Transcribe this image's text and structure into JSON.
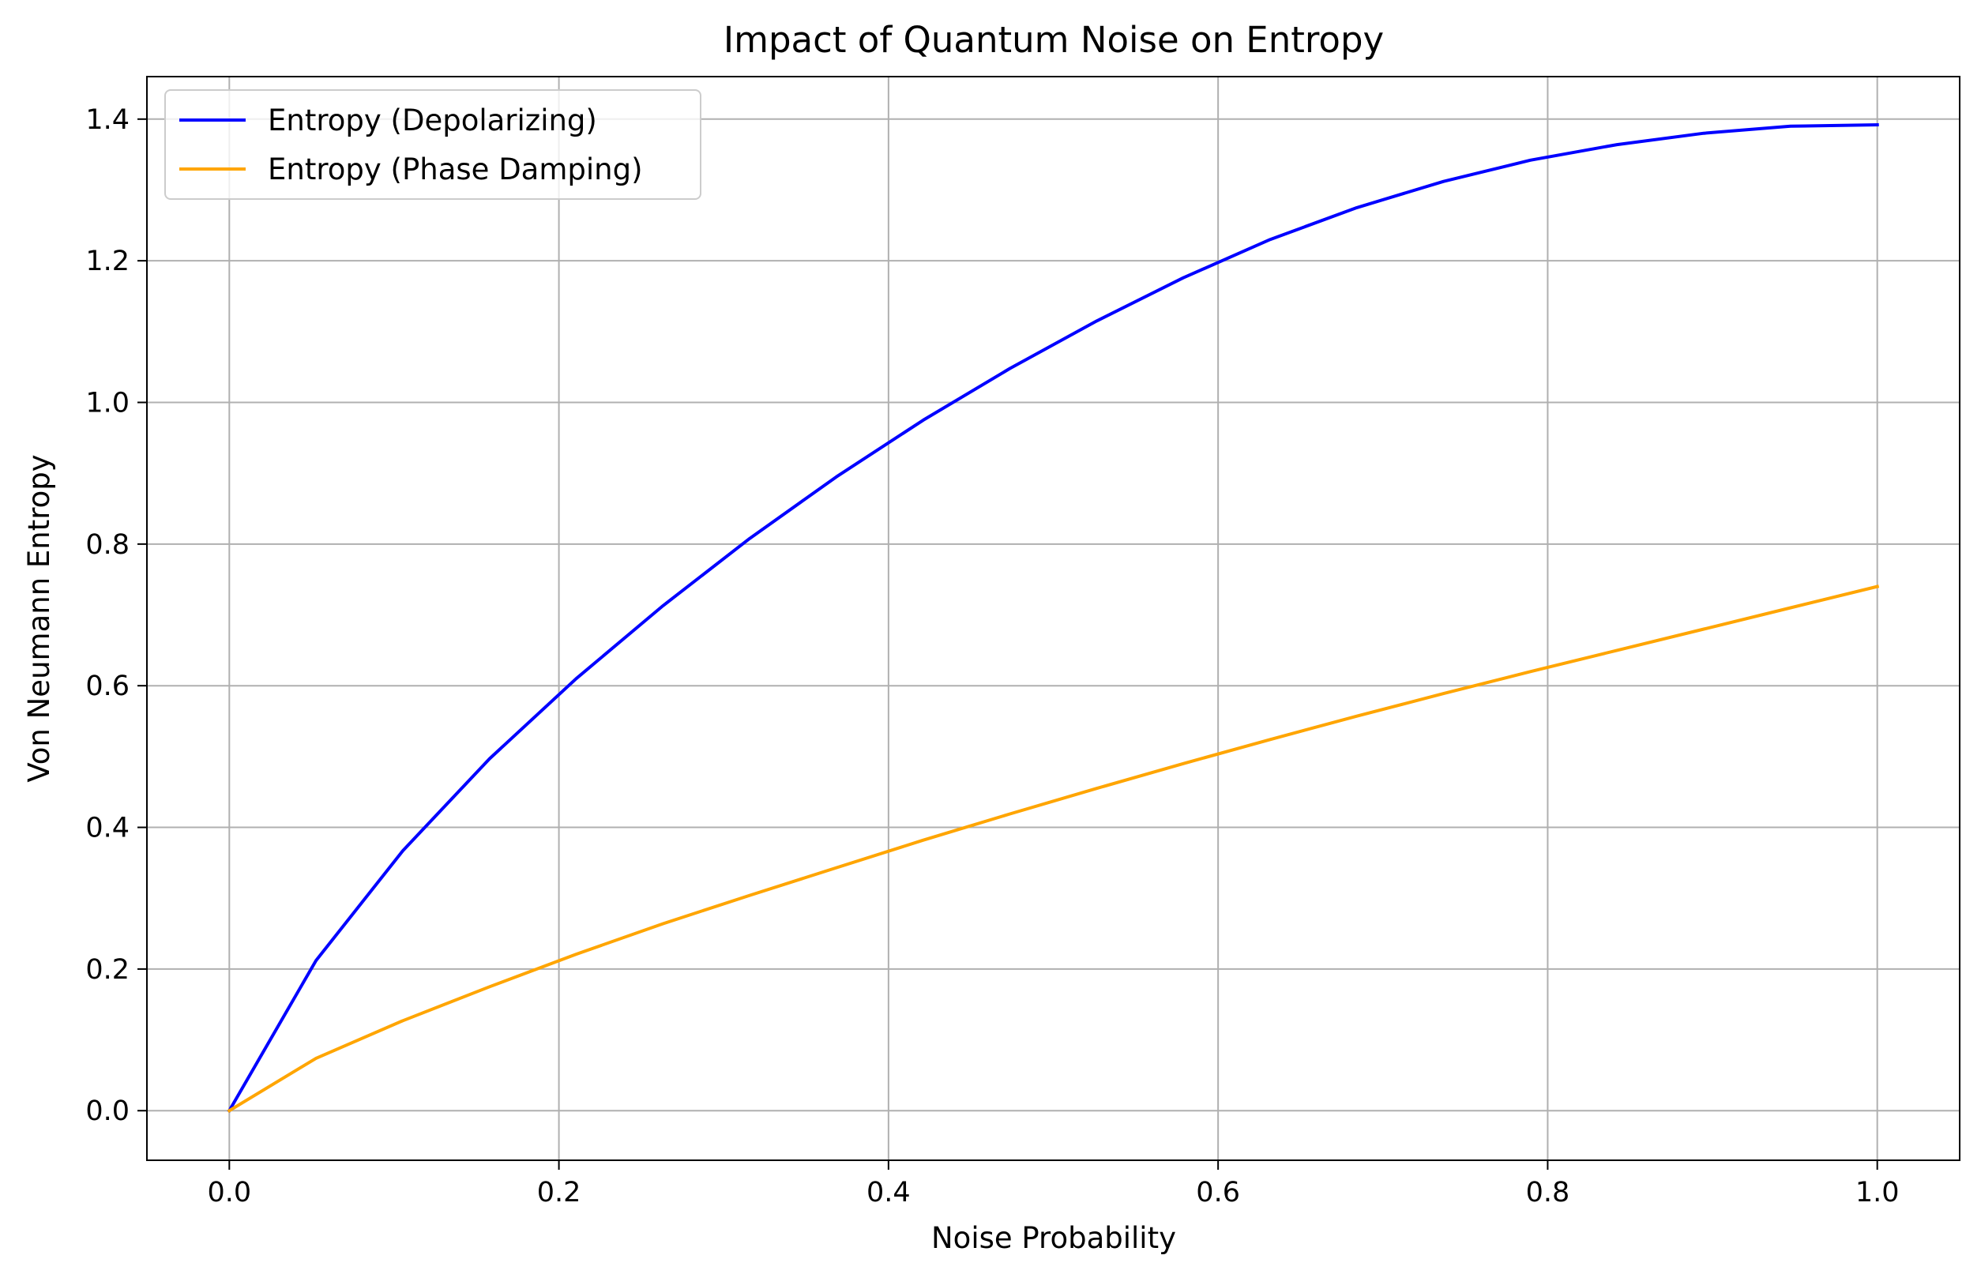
{
  "chart_data": {
    "type": "line",
    "title": "Impact of Quantum Noise on Entropy",
    "xlabel": "Noise Probability",
    "ylabel": "Von Neumann Entropy",
    "xlim": [
      -0.05,
      1.05
    ],
    "ylim": [
      -0.07,
      1.46
    ],
    "xticks": [
      0.0,
      0.2,
      0.4,
      0.6,
      0.8,
      1.0
    ],
    "xtick_labels": [
      "0.0",
      "0.2",
      "0.4",
      "0.6",
      "0.8",
      "1.0"
    ],
    "yticks": [
      0.0,
      0.2,
      0.4,
      0.6,
      0.8,
      1.0,
      1.2,
      1.4
    ],
    "ytick_labels": [
      "0.0",
      "0.2",
      "0.4",
      "0.6",
      "0.8",
      "1.0",
      "1.2",
      "1.4"
    ],
    "grid": true,
    "legend_position": "top-left",
    "x": [
      0.0,
      0.0526,
      0.1053,
      0.1579,
      0.2105,
      0.2632,
      0.3158,
      0.3684,
      0.4211,
      0.4737,
      0.5263,
      0.5789,
      0.6316,
      0.6842,
      0.7368,
      0.7895,
      0.8421,
      0.8947,
      0.9474,
      1.0
    ],
    "series": [
      {
        "name": "Entropy (Depolarizing)",
        "color": "#0000ff",
        "values": [
          0.0,
          0.212,
          0.367,
          0.497,
          0.61,
          0.713,
          0.808,
          0.895,
          0.975,
          1.048,
          1.115,
          1.176,
          1.23,
          1.275,
          1.312,
          1.342,
          1.364,
          1.38,
          1.39,
          1.392
        ]
      },
      {
        "name": "Entropy (Phase Damping)",
        "color": "#ffa500",
        "values": [
          0.0,
          0.074,
          0.127,
          0.175,
          0.221,
          0.264,
          0.304,
          0.343,
          0.382,
          0.419,
          0.455,
          0.49,
          0.524,
          0.557,
          0.589,
          0.62,
          0.65,
          0.68,
          0.71,
          0.74
        ]
      }
    ]
  }
}
